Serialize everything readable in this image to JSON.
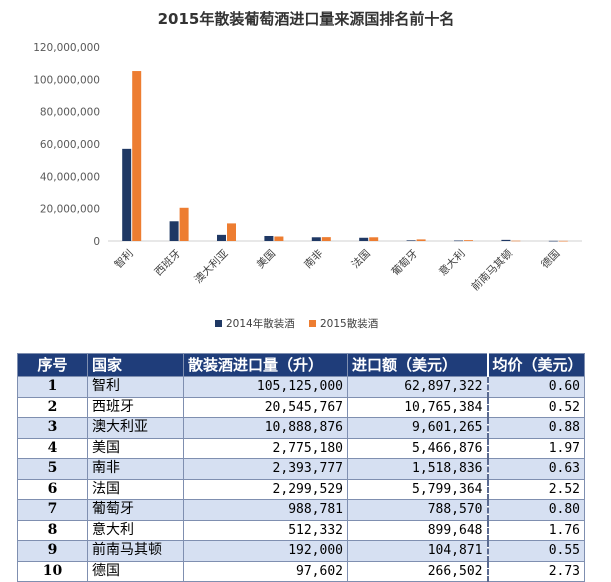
{
  "chart_data": {
    "type": "bar",
    "title": "2015年散装葡萄酒进口量来源国排名前十名",
    "categories": [
      "智利",
      "西班牙",
      "澳大利亚",
      "美国",
      "南非",
      "法国",
      "葡萄牙",
      "意大利",
      "前南马其顿",
      "德国"
    ],
    "series": [
      {
        "name": "2014年散装酒",
        "color": "#1f3864",
        "values": [
          57000000,
          12200000,
          3800000,
          3100000,
          2300000,
          2000000,
          400000,
          300000,
          700000,
          100000
        ]
      },
      {
        "name": "2015散装酒",
        "color": "#ed7d31",
        "values": [
          105125000,
          20545767,
          10888876,
          2775180,
          2393777,
          2299529,
          988781,
          512332,
          192000,
          97602
        ]
      }
    ],
    "ylim": [
      0,
      120000000
    ],
    "yticks": [
      0,
      20000000,
      40000000,
      60000000,
      80000000,
      100000000,
      120000000
    ],
    "ytick_labels": [
      "0",
      "20,000,000",
      "40,000,000",
      "60,000,000",
      "80,000,000",
      "100,000,000",
      "120,000,000"
    ],
    "grid": false,
    "legend_position": "bottom"
  },
  "table": {
    "headers": [
      "序号",
      "国家",
      "散装酒进口量（升）",
      "进口额（美元）",
      "均价（美元）"
    ],
    "rows": [
      [
        "1",
        "智利",
        "105,125,000",
        "62,897,322",
        "0.60"
      ],
      [
        "2",
        "西班牙",
        "20,545,767",
        "10,765,384",
        "0.52"
      ],
      [
        "3",
        "澳大利亚",
        "10,888,876",
        "9,601,265",
        "0.88"
      ],
      [
        "4",
        "美国",
        "2,775,180",
        "5,466,876",
        "1.97"
      ],
      [
        "5",
        "南非",
        "2,393,777",
        "1,518,836",
        "0.63"
      ],
      [
        "6",
        "法国",
        "2,299,529",
        "5,799,364",
        "2.52"
      ],
      [
        "7",
        "葡萄牙",
        "988,781",
        "788,570",
        "0.80"
      ],
      [
        "8",
        "意大利",
        "512,332",
        "899,648",
        "1.76"
      ],
      [
        "9",
        "前南马其顿",
        "192,000",
        "104,871",
        "0.55"
      ],
      [
        "10",
        "德国",
        "97,602",
        "266,502",
        "2.73"
      ]
    ]
  }
}
